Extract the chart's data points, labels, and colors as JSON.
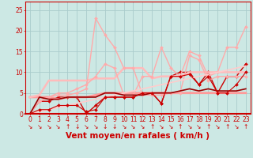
{
  "xlabel": "Vent moyen/en rafales ( km/h )",
  "background_color": "#cce8e4",
  "grid_color": "#aacccc",
  "x_values": [
    0,
    1,
    2,
    3,
    4,
    5,
    6,
    7,
    8,
    9,
    10,
    11,
    12,
    13,
    14,
    15,
    16,
    17,
    18,
    19,
    20,
    21,
    22,
    23
  ],
  "lines": [
    {
      "y": [
        0,
        3,
        3,
        4,
        4,
        4,
        0,
        2,
        4,
        4,
        4,
        4,
        5,
        5,
        2.5,
        9,
        10,
        10,
        7,
        10,
        5,
        9,
        9,
        12
      ],
      "color": "#cc0000",
      "lw": 1.0,
      "marker": "D",
      "ms": 2.0
    },
    {
      "y": [
        4,
        4,
        4,
        3.5,
        4,
        4,
        4,
        4.5,
        5,
        5,
        5,
        5,
        5,
        5,
        5,
        5,
        5,
        5,
        5,
        5,
        5,
        5,
        5,
        5
      ],
      "color": "#ff9999",
      "lw": 2.0,
      "marker": null,
      "ms": 0
    },
    {
      "y": [
        4,
        4.5,
        8,
        8,
        8,
        8,
        8,
        8.5,
        8.5,
        8.5,
        11,
        11,
        11,
        8.5,
        9,
        9,
        9,
        10,
        10,
        10,
        10,
        10,
        10,
        10
      ],
      "color": "#ffbbbb",
      "lw": 1.8,
      "marker": null,
      "ms": 0
    },
    {
      "y": [
        0,
        3,
        4,
        5,
        5,
        6,
        7,
        9,
        12,
        11,
        4.5,
        4.5,
        9,
        9,
        16,
        11,
        9,
        15,
        14,
        9,
        10,
        16,
        16,
        21
      ],
      "color": "#ffaaaa",
      "lw": 1.0,
      "marker": "D",
      "ms": 2.0
    },
    {
      "y": [
        0,
        3,
        4,
        4.5,
        4.5,
        5,
        6,
        23,
        19,
        16,
        11,
        11,
        4.5,
        4.5,
        4.5,
        5,
        5,
        14,
        13,
        8,
        9,
        9,
        9,
        9
      ],
      "color": "#ffaaaa",
      "lw": 1.0,
      "marker": "D",
      "ms": 2.0
    },
    {
      "y": [
        0,
        0.5,
        1,
        1.5,
        2,
        2.5,
        3,
        3.5,
        4,
        4.5,
        5,
        5.5,
        6,
        6.5,
        7,
        7.5,
        8,
        8.5,
        9,
        9.5,
        10,
        10.5,
        11,
        11.5
      ],
      "color": "#ffcccc",
      "lw": 1.2,
      "marker": null,
      "ms": 0
    },
    {
      "y": [
        0,
        4,
        3.5,
        3.5,
        4,
        4,
        4,
        4,
        5,
        5,
        4.5,
        4.5,
        4.5,
        5,
        5,
        5,
        5.5,
        6,
        5.5,
        6,
        5.5,
        5.5,
        5.5,
        6
      ],
      "color": "#990000",
      "lw": 1.2,
      "marker": null,
      "ms": 0
    },
    {
      "y": [
        0,
        1,
        1,
        2,
        2,
        2,
        0.5,
        1,
        4,
        4,
        4,
        4,
        5,
        5,
        2.5,
        9,
        9,
        9.5,
        7,
        9,
        5,
        5,
        7,
        10
      ],
      "color": "#cc0000",
      "lw": 0.8,
      "marker": "D",
      "ms": 2.0
    }
  ],
  "ylim": [
    0,
    27
  ],
  "xlim": [
    -0.5,
    23.5
  ],
  "yticks": [
    0,
    5,
    10,
    15,
    20,
    25
  ],
  "xticks": [
    0,
    1,
    2,
    3,
    4,
    5,
    6,
    7,
    8,
    9,
    10,
    11,
    12,
    13,
    14,
    15,
    16,
    17,
    18,
    19,
    20,
    21,
    22,
    23
  ],
  "tick_fontsize": 5.5,
  "xlabel_fontsize": 7.5,
  "xlabel_color": "#cc0000",
  "tick_label_color": "#cc0000",
  "arrow_symbols": [
    "↘",
    "↘",
    "↘",
    "↘",
    "↑",
    "↓",
    "↘",
    "↘",
    "↓",
    "↓",
    "↘",
    "↘",
    "↘",
    "↑",
    "↘",
    "↘",
    "↑",
    "↘",
    "↘",
    "↑",
    "↘",
    "↑",
    "↘",
    "↑"
  ]
}
